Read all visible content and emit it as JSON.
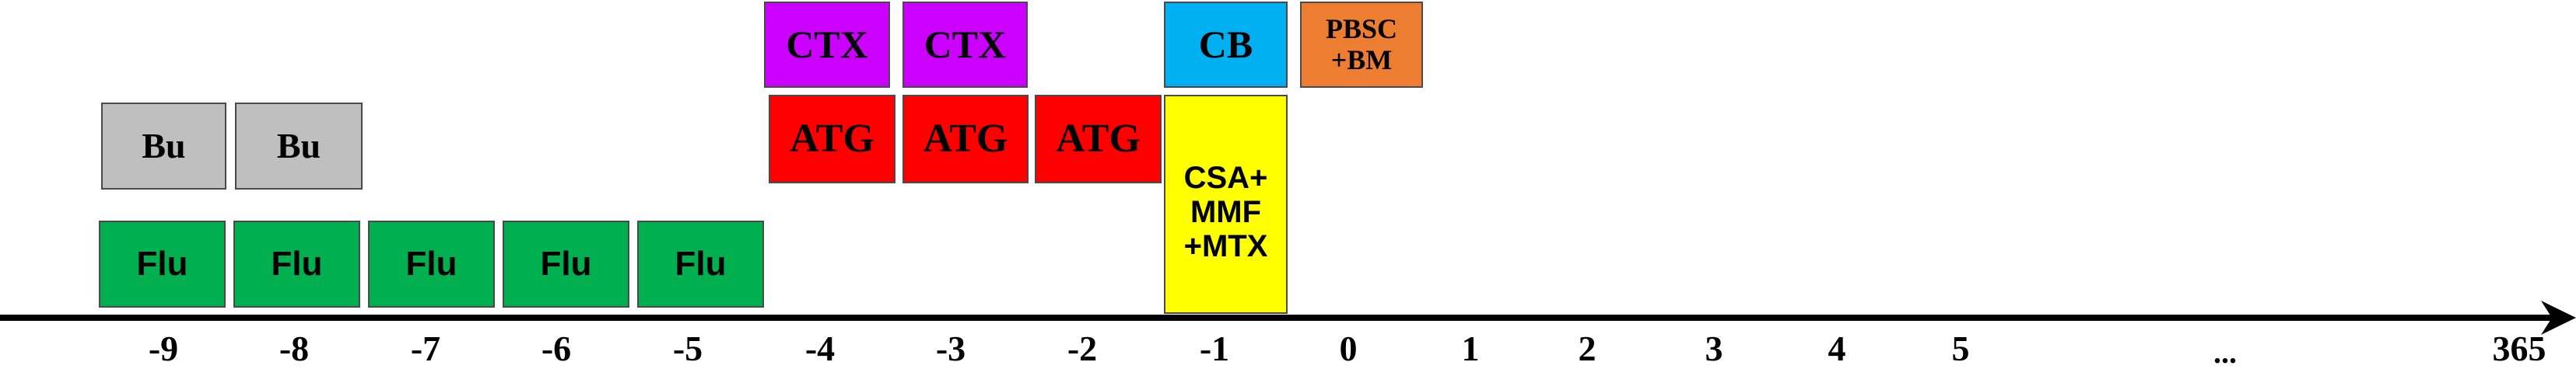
{
  "colors": {
    "flu": "#00b050",
    "bu": "#bfbfbf",
    "atg": "#ff0000",
    "ctx": "#cc00ff",
    "cb": "#00b0f0",
    "pbsc": "#ed7d31",
    "gvhd": "#ffff00",
    "axis": "#000000"
  },
  "blocks": {
    "flu": [
      "Flu",
      "Flu",
      "Flu",
      "Flu",
      "Flu"
    ],
    "bu": [
      "Bu",
      "Bu"
    ],
    "ctx": [
      "CTX",
      "CTX"
    ],
    "atg": [
      "ATG",
      "ATG",
      "ATG"
    ],
    "cb": "CB",
    "pbsc": {
      "line1": "PBSC",
      "line2": "+BM"
    },
    "gvhd": {
      "line1": "CSA+",
      "line2": "MMF",
      "line3": "+MTX"
    }
  },
  "axis_labels": [
    "-9",
    "-8",
    "-7",
    "-6",
    "-5",
    "-4",
    "-3",
    "-2",
    "-1",
    "0",
    "1",
    "2",
    "3",
    "4",
    "5",
    "...",
    "365"
  ]
}
